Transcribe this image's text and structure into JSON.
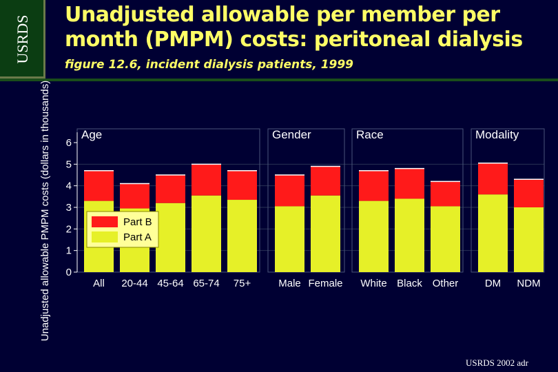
{
  "header": {
    "logo": "USRDS",
    "title": "Unadjusted allowable per member per month (PMPM) costs: peritoneal dialysis",
    "subtitle": "figure 12.6, incident dialysis patients, 1999"
  },
  "footer": {
    "source": "USRDS 2002 adr"
  },
  "colors": {
    "part_b": "#ff1a1a",
    "part_a": "#e6f028",
    "background": "#000033",
    "title": "#ffff66"
  },
  "chart_data": {
    "type": "bar",
    "stacked": true,
    "ylabel": "Unadjusted allowable PMPM costs (dollars in thousands)",
    "ylim": [
      0,
      6
    ],
    "yticks": [
      "0",
      "1",
      "2",
      "3",
      "4",
      "5",
      "6"
    ],
    "legend": {
      "placement": "left-inside",
      "entries": [
        "Part B",
        "Part A"
      ]
    },
    "panels": [
      {
        "name": "Age",
        "categories": [
          "All",
          "20-44",
          "45-64",
          "65-74",
          "75+"
        ]
      },
      {
        "name": "Gender",
        "categories": [
          "Male",
          "Female"
        ]
      },
      {
        "name": "Race",
        "categories": [
          "White",
          "Black",
          "Other"
        ]
      },
      {
        "name": "Modality",
        "categories": [
          "DM",
          "NDM"
        ]
      }
    ],
    "categories": [
      "All",
      "20-44",
      "45-64",
      "65-74",
      "75+",
      "Male",
      "Female",
      "White",
      "Black",
      "Other",
      "DM",
      "NDM"
    ],
    "series": [
      {
        "name": "Part A",
        "values": [
          3.3,
          2.95,
          3.2,
          3.55,
          3.35,
          3.05,
          3.55,
          3.3,
          3.4,
          3.05,
          3.6,
          3.0
        ]
      },
      {
        "name": "Part B",
        "values": [
          1.4,
          1.15,
          1.3,
          1.45,
          1.35,
          1.45,
          1.35,
          1.4,
          1.4,
          1.15,
          1.45,
          1.3
        ]
      }
    ]
  }
}
